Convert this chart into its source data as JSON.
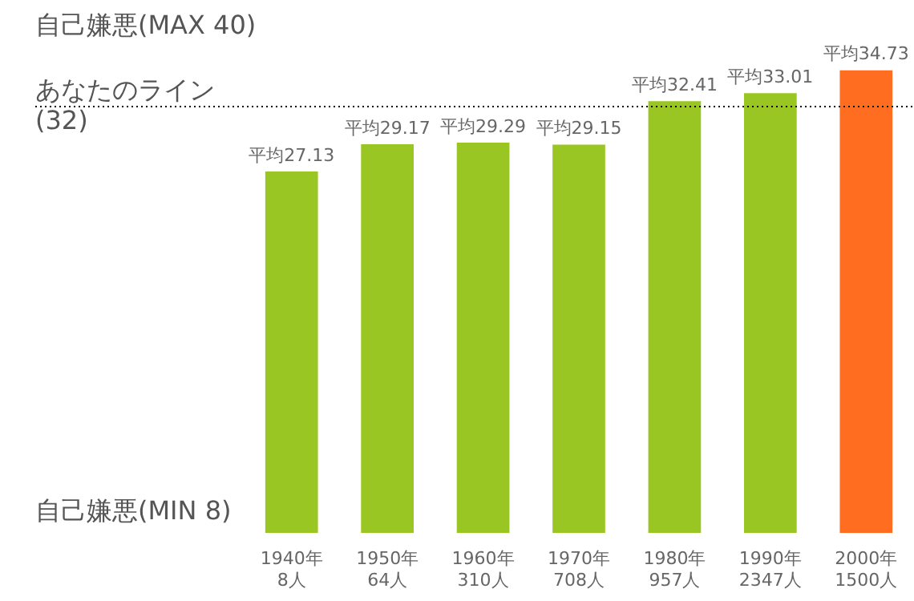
{
  "chart_data": {
    "type": "bar",
    "categories": [
      "1940年\n8人",
      "1950年\n64人",
      "1960年\n310人",
      "1970年\n708人",
      "1980年\n957人",
      "1990年\n2347人",
      "2000年\n1500人"
    ],
    "values": [
      27.13,
      29.17,
      29.29,
      29.15,
      32.41,
      33.01,
      34.73
    ],
    "value_labels": [
      "平均27.13",
      "平均29.17",
      "平均29.29",
      "平均29.15",
      "平均32.41",
      "平均33.01",
      "平均34.73"
    ],
    "colors": [
      "#99c623",
      "#99c623",
      "#99c623",
      "#99c623",
      "#99c623",
      "#99c623",
      "#ff6d20"
    ],
    "ref_lines": [
      {
        "axis": "y",
        "value": 32,
        "label": "あなたのライン\n(32)",
        "color": "#000000",
        "line_style": "dotted"
      }
    ],
    "annotations": [
      "自己嫌悪(MAX 40)",
      "自己嫌悪(MIN 8)"
    ],
    "grid": false,
    "legend": false
  }
}
